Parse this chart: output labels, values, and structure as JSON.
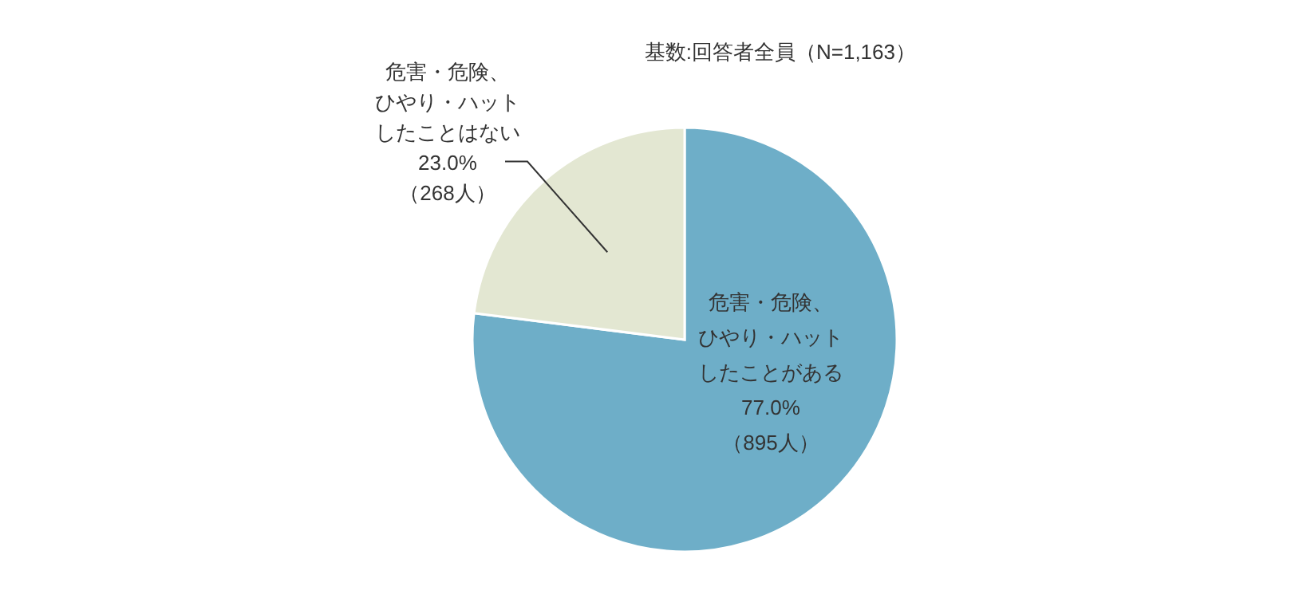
{
  "chart_data": {
    "type": "pie",
    "subtitle": "基数:回答者全員（N=1,163）",
    "categories": [
      "危害・危険、ひやり・ハットしたことがある",
      "危害・危険、ひやり・ハットしたことはない"
    ],
    "values": [
      77.0,
      23.0
    ],
    "colors": [
      "#6eaec8",
      "#e3e7d2"
    ],
    "value_labels": [
      "77.0%\n（895人）",
      "23.0%\n（268人）"
    ]
  }
}
